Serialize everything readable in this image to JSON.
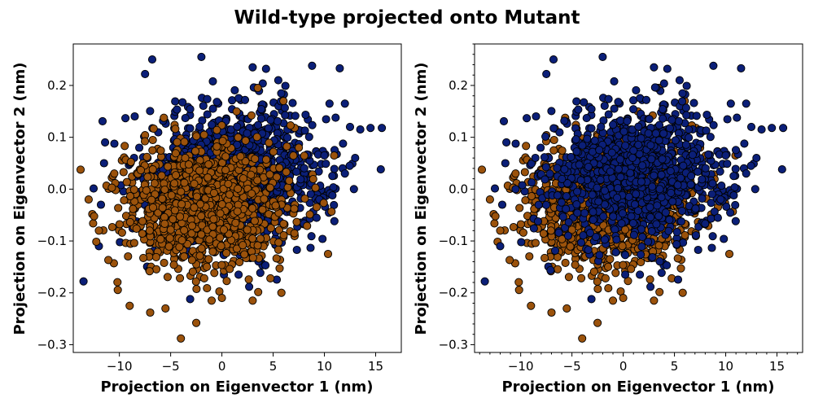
{
  "figure": {
    "title": "Wild-type projected onto Mutant"
  },
  "colors": {
    "wild_type": "#9b520b",
    "mutant": "#0b1f78",
    "marker_edge": "#000000"
  },
  "chart_data": [
    {
      "type": "scatter",
      "panel": "left",
      "title": "",
      "xlabel": "Projection on Eigenvector 1 (nm)",
      "ylabel": "Projection on Eigenvector 2 (nm)",
      "xlim": [
        -14.5,
        17.5
      ],
      "ylim": [
        -0.315,
        0.28
      ],
      "xticks": [
        -10,
        -5,
        0,
        5,
        10,
        15
      ],
      "yticks": [
        -0.3,
        -0.2,
        -0.1,
        0.0,
        0.1,
        0.2
      ],
      "xtick_labels": [
        "−10",
        "−5",
        "0",
        "5",
        "10",
        "15"
      ],
      "ytick_labels": [
        "−0.3",
        "−0.2",
        "−0.1",
        "0.0",
        "0.1",
        "0.2"
      ],
      "minor_ticks": false,
      "grid": false,
      "draw_order": [
        "mutant",
        "wild_type"
      ],
      "series": [
        {
          "key": "mutant",
          "color_key": "mutant",
          "cloud": {
            "count": 1100,
            "center": [
              1.5,
              0.03
            ],
            "spread": [
              4.4,
              0.065
            ]
          },
          "outliers": [
            [
              -6.8,
              0.25
            ],
            [
              -2,
              0.255
            ],
            [
              -7.5,
              0.222
            ],
            [
              8.8,
              0.238
            ],
            [
              11.5,
              0.233
            ],
            [
              -13.5,
              -0.178
            ],
            [
              -11.5,
              0.05
            ],
            [
              -3.1,
              -0.212
            ],
            [
              15.5,
              0.038
            ],
            [
              15.6,
              0.118
            ],
            [
              14.5,
              0.118
            ],
            [
              13.5,
              0.115
            ],
            [
              12,
              0.165
            ],
            [
              10.5,
              0.165
            ],
            [
              3,
              0.235
            ],
            [
              5.5,
              0.21
            ],
            [
              -10.5,
              0.0
            ],
            [
              12.5,
              0.12
            ],
            [
              9.5,
              -0.02
            ],
            [
              10,
              0.065
            ],
            [
              4.3,
              0.232
            ],
            [
              12,
              0.03
            ],
            [
              13,
              0.06
            ],
            [
              -11.8,
              -0.03
            ],
            [
              -12,
              -0.11
            ]
          ]
        },
        {
          "key": "wild_type",
          "color_key": "wild_type",
          "cloud": {
            "count": 1100,
            "center": [
              -1.5,
              -0.035
            ],
            "spread": [
              4.0,
              0.062
            ]
          },
          "outliers": [
            [
              -4.0,
              -0.288
            ],
            [
              -2.5,
              -0.258
            ],
            [
              -10.5,
              0.03
            ],
            [
              -13,
              -0.02
            ],
            [
              -9,
              -0.225
            ],
            [
              -7,
              -0.238
            ],
            [
              -5.5,
              -0.23
            ],
            [
              -1,
              -0.215
            ],
            [
              3,
              -0.215
            ],
            [
              5.8,
              -0.2
            ],
            [
              6,
              0.17
            ],
            [
              3.5,
              0.195
            ],
            [
              -12,
              -0.08
            ],
            [
              7.5,
              0.08
            ],
            [
              0,
              -0.21
            ]
          ]
        }
      ]
    },
    {
      "type": "scatter",
      "panel": "right",
      "title": "",
      "xlabel": "Projection on Eigenvector 1 (nm)",
      "ylabel": "Projection on Eigenvector 2 (nm)",
      "xlim": [
        -14.5,
        17.5
      ],
      "ylim": [
        -0.315,
        0.28
      ],
      "xticks": [
        -10,
        -5,
        0,
        5,
        10,
        15
      ],
      "yticks": [
        -0.3,
        -0.2,
        -0.1,
        0.0,
        0.1,
        0.2
      ],
      "xtick_labels": [
        "−10",
        "−5",
        "0",
        "5",
        "10",
        "15"
      ],
      "ytick_labels": [
        "−0.3",
        "−0.2",
        "−0.1",
        "0.0",
        "0.1",
        "0.2"
      ],
      "minor_ticks": true,
      "grid": false,
      "draw_order": [
        "wild_type",
        "mutant"
      ],
      "series": [
        {
          "key": "mutant",
          "color_key": "mutant",
          "cloud": {
            "count": 1100,
            "center": [
              1.5,
              0.03
            ],
            "spread": [
              4.4,
              0.065
            ]
          },
          "outliers": [
            [
              -6.8,
              0.25
            ],
            [
              -2,
              0.255
            ],
            [
              -7.5,
              0.222
            ],
            [
              8.8,
              0.238
            ],
            [
              11.5,
              0.233
            ],
            [
              -13.5,
              -0.178
            ],
            [
              -11.5,
              0.05
            ],
            [
              -3.1,
              -0.212
            ],
            [
              15.5,
              0.038
            ],
            [
              15.6,
              0.118
            ],
            [
              14.5,
              0.118
            ],
            [
              13.5,
              0.115
            ],
            [
              12,
              0.165
            ],
            [
              10.5,
              0.165
            ],
            [
              3,
              0.235
            ],
            [
              5.5,
              0.21
            ],
            [
              -10.5,
              0.0
            ],
            [
              12.5,
              0.12
            ],
            [
              9.5,
              -0.02
            ],
            [
              10,
              0.065
            ],
            [
              4.3,
              0.232
            ],
            [
              12,
              0.03
            ],
            [
              13,
              0.06
            ],
            [
              -11.8,
              -0.03
            ],
            [
              -12,
              -0.11
            ]
          ]
        },
        {
          "key": "wild_type",
          "color_key": "wild_type",
          "cloud": {
            "count": 1100,
            "center": [
              -1.5,
              -0.035
            ],
            "spread": [
              4.0,
              0.062
            ]
          },
          "outliers": [
            [
              -4.0,
              -0.288
            ],
            [
              -2.5,
              -0.258
            ],
            [
              -10.5,
              0.03
            ],
            [
              -13,
              -0.02
            ],
            [
              -9,
              -0.225
            ],
            [
              -7,
              -0.238
            ],
            [
              -5.5,
              -0.23
            ],
            [
              -1,
              -0.215
            ],
            [
              3,
              -0.215
            ],
            [
              5.8,
              -0.2
            ],
            [
              6,
              0.17
            ],
            [
              3.5,
              0.195
            ],
            [
              -12,
              -0.08
            ],
            [
              7.5,
              0.08
            ],
            [
              0,
              -0.21
            ]
          ]
        }
      ]
    }
  ]
}
